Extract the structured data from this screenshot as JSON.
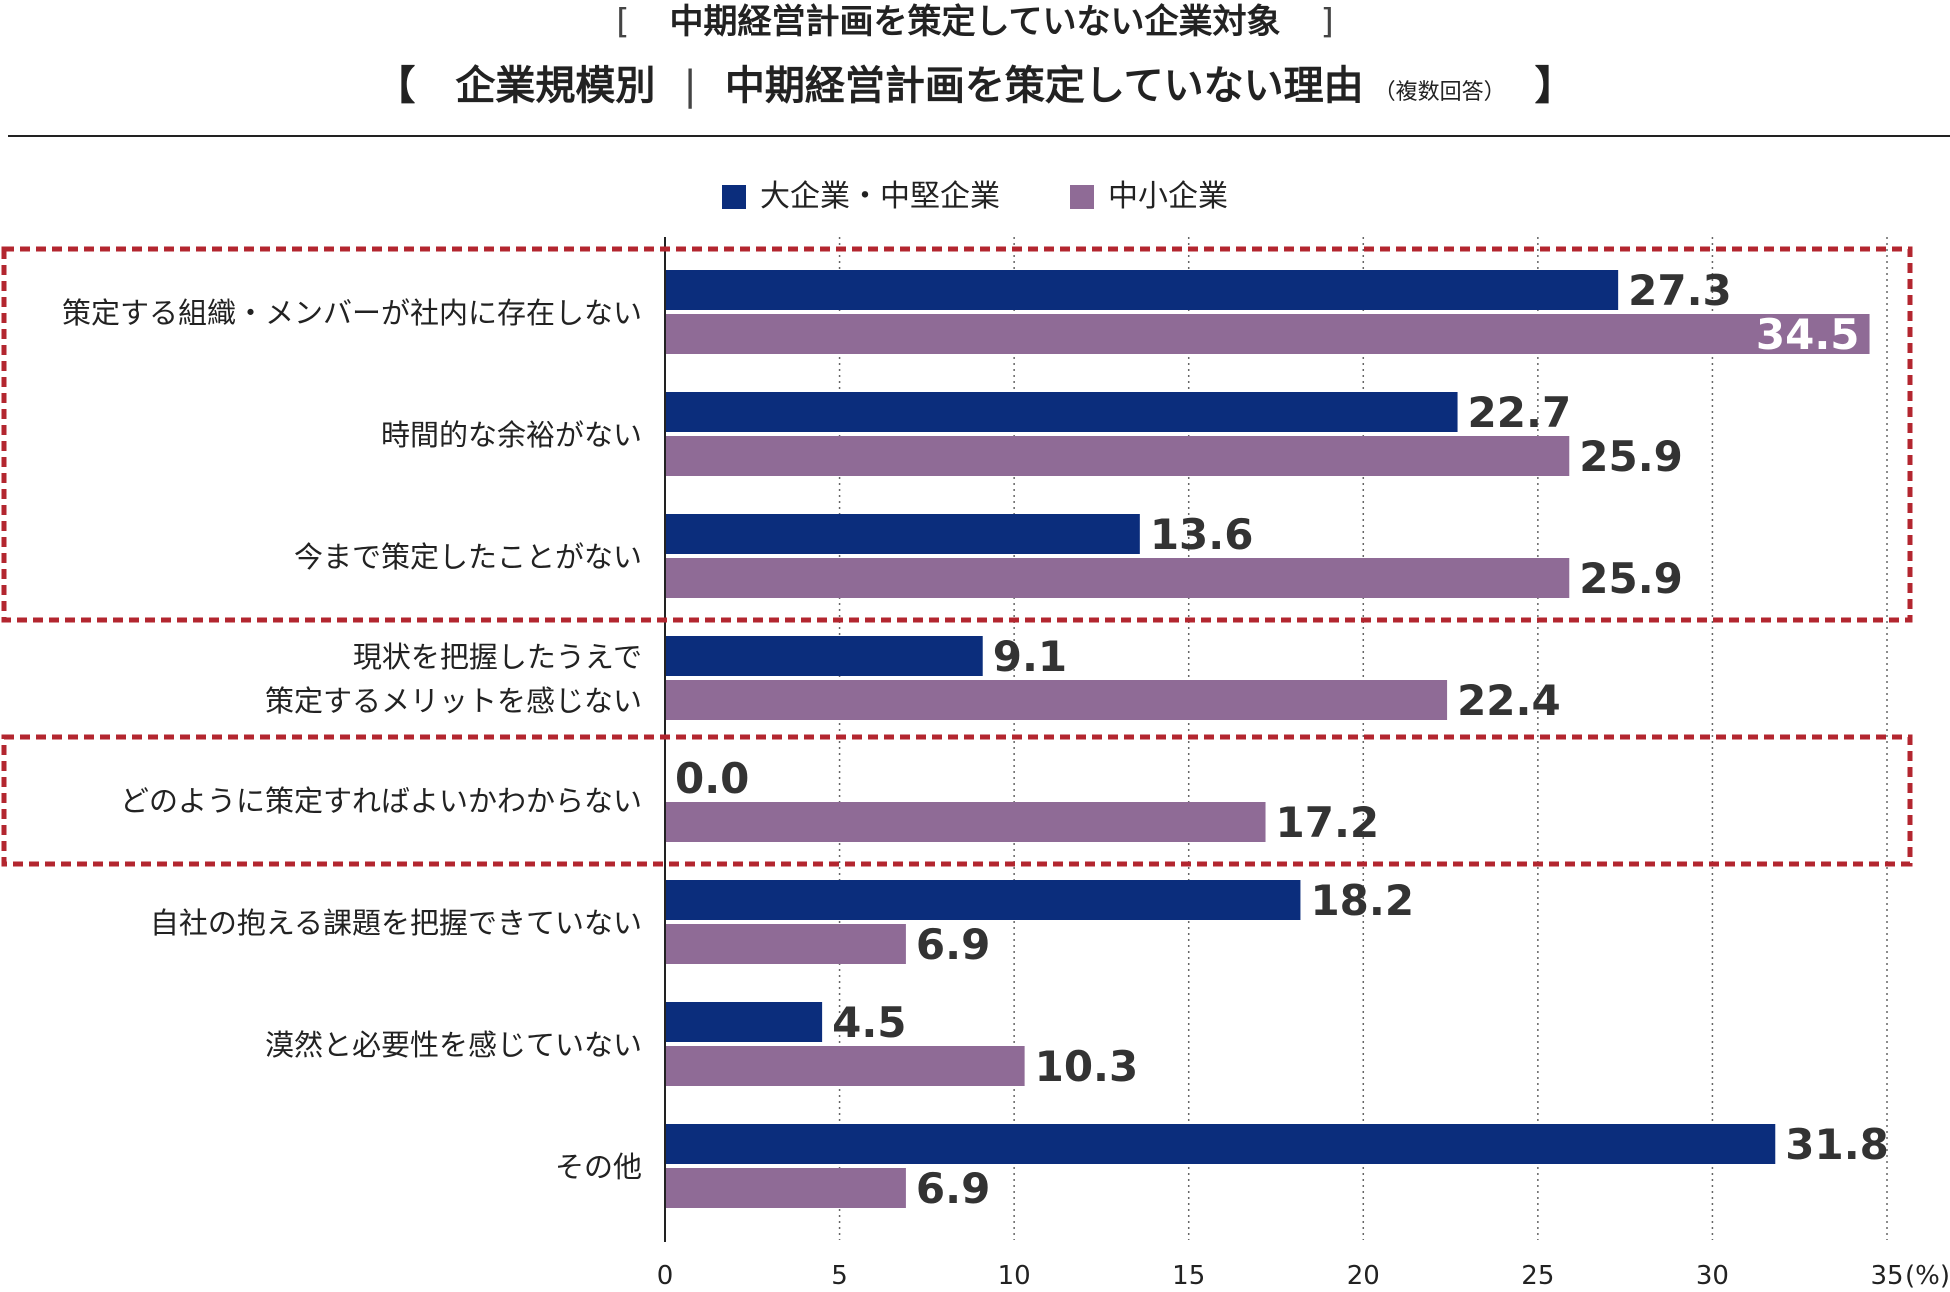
{
  "title_line1": {
    "open": "[",
    "text": "中期経営計画を策定していない企業対象",
    "close": "]"
  },
  "title_line2": {
    "open": "【",
    "part1": "企業規模別",
    "separator": "|",
    "part2": "中期経営計画を策定していない理由",
    "note": "（複数回答）",
    "close": "】"
  },
  "colors": {
    "large": "#0b2d7c",
    "small": "#8f6b96",
    "highlight_border": "#b3262f",
    "grid": "#555555"
  },
  "chart_data": {
    "type": "bar",
    "orientation": "horizontal",
    "categories": [
      [
        "策定する組織・メンバーが社内に存在しない"
      ],
      [
        "時間的な余裕がない"
      ],
      [
        "今まで策定したことがない"
      ],
      [
        "現状を把握したうえで",
        "策定するメリットを感じない"
      ],
      [
        "どのように策定すればよいかわからない"
      ],
      [
        "自社の抱える課題を把握できていない"
      ],
      [
        "漠然と必要性を感じていない"
      ],
      [
        "その他"
      ]
    ],
    "series": [
      {
        "name": "大企業・中堅企業",
        "color": "#0b2d7c",
        "values": [
          27.3,
          22.7,
          13.6,
          9.1,
          0.0,
          18.2,
          4.5,
          31.8
        ],
        "labels": [
          "27.3",
          "22.7",
          "13.6",
          "9.1",
          "0.0",
          "18.2",
          "4.5",
          "31.8"
        ]
      },
      {
        "name": "中小企業",
        "color": "#8f6b96",
        "values": [
          34.5,
          25.9,
          25.9,
          22.4,
          17.2,
          6.9,
          10.3,
          6.9
        ],
        "labels": [
          "34.5",
          "25.9",
          "25.9",
          "22.4",
          "17.2",
          "6.9",
          "10.3",
          "6.9"
        ]
      }
    ],
    "xlim": [
      0,
      35
    ],
    "xticks": [
      0,
      5,
      10,
      15,
      20,
      25,
      30,
      35
    ],
    "xtick_labels": [
      "0",
      "5",
      "10",
      "15",
      "20",
      "25",
      "30",
      "35"
    ],
    "unit_label": "(%)",
    "inside_label_categories": [
      0
    ],
    "highlight_groups": [
      [
        0,
        2
      ],
      [
        4,
        4
      ]
    ]
  }
}
